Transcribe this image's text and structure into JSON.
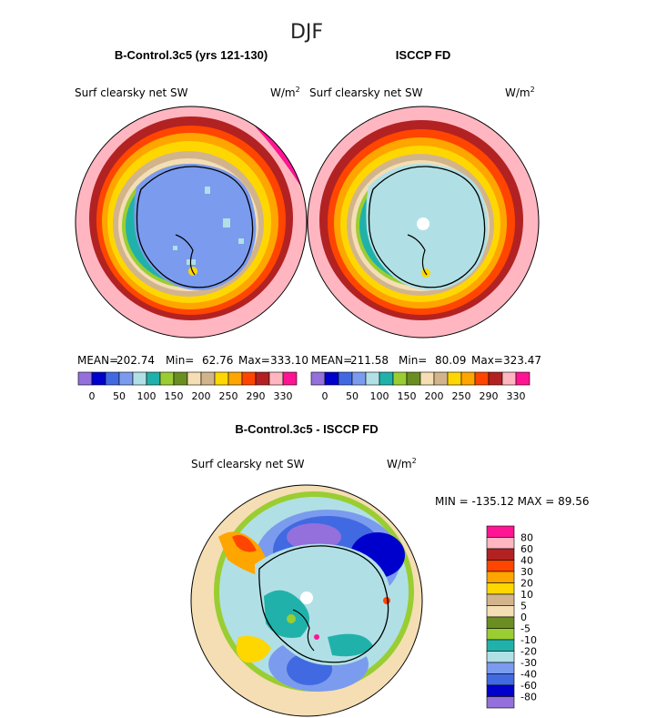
{
  "figure_title": "DJF",
  "colors": {
    "c_-80": "#9370db",
    "c_-60": "#0000cd",
    "c_-40": "#4169e1",
    "c_-30": "#7b9bee",
    "c_-20": "#b0e0e6",
    "c_-10": "#20b2aa",
    "c_-5": "#9acd32",
    "c_0": "#6b8e23",
    "c_5": "#f5deb3",
    "c_10": "#d2b48c",
    "c_20": "#ffd700",
    "c_30": "#ffa500",
    "c_40": "#ff4500",
    "c_60": "#b22222",
    "c_80": "#ffb6c1",
    "c_top": "#ff1493"
  },
  "chart_data": [
    {
      "type": "heatmap",
      "title": "B-Control.3c5 (yrs 121-130)",
      "variable": "Surf clearsky net SW",
      "units": "W/m",
      "units_exp": "2",
      "stats": {
        "mean_label": "MEAN=",
        "mean": "202.74",
        "min_label": "Min=",
        "min": "62.76",
        "max_label": "Max=",
        "max": "333.10"
      },
      "levels": [
        0,
        50,
        100,
        150,
        200,
        250,
        290,
        330
      ],
      "colorbar_labels": [
        "0",
        "50",
        "100",
        "150",
        "200",
        "250",
        "290",
        "330"
      ]
    },
    {
      "type": "heatmap",
      "title": "ISCCP FD",
      "variable": "Surf clearsky net SW",
      "units": "W/m",
      "units_exp": "2",
      "stats": {
        "mean_label": "MEAN=",
        "mean": "211.58",
        "min_label": "Min=",
        "min": "80.09",
        "max_label": "Max=",
        "max": "323.47"
      },
      "levels": [
        0,
        50,
        100,
        150,
        200,
        250,
        290,
        330
      ],
      "colorbar_labels": [
        "0",
        "50",
        "100",
        "150",
        "200",
        "250",
        "290",
        "330"
      ]
    },
    {
      "type": "heatmap",
      "title": "B-Control.3c5 - ISCCP FD",
      "variable": "Surf clearsky net SW",
      "units": "W/m",
      "units_exp": "2",
      "stats_text": "MIN = -135.12  MAX =  89.56",
      "levels": [
        80,
        60,
        40,
        30,
        20,
        10,
        5,
        0,
        -5,
        -10,
        -20,
        -30,
        -40,
        -60,
        -80
      ],
      "colorbar_labels": [
        "80",
        "60",
        "40",
        "30",
        "20",
        "10",
        "5",
        "0",
        "-5",
        "-10",
        "-20",
        "-30",
        "-40",
        "-60",
        "-80"
      ]
    }
  ]
}
